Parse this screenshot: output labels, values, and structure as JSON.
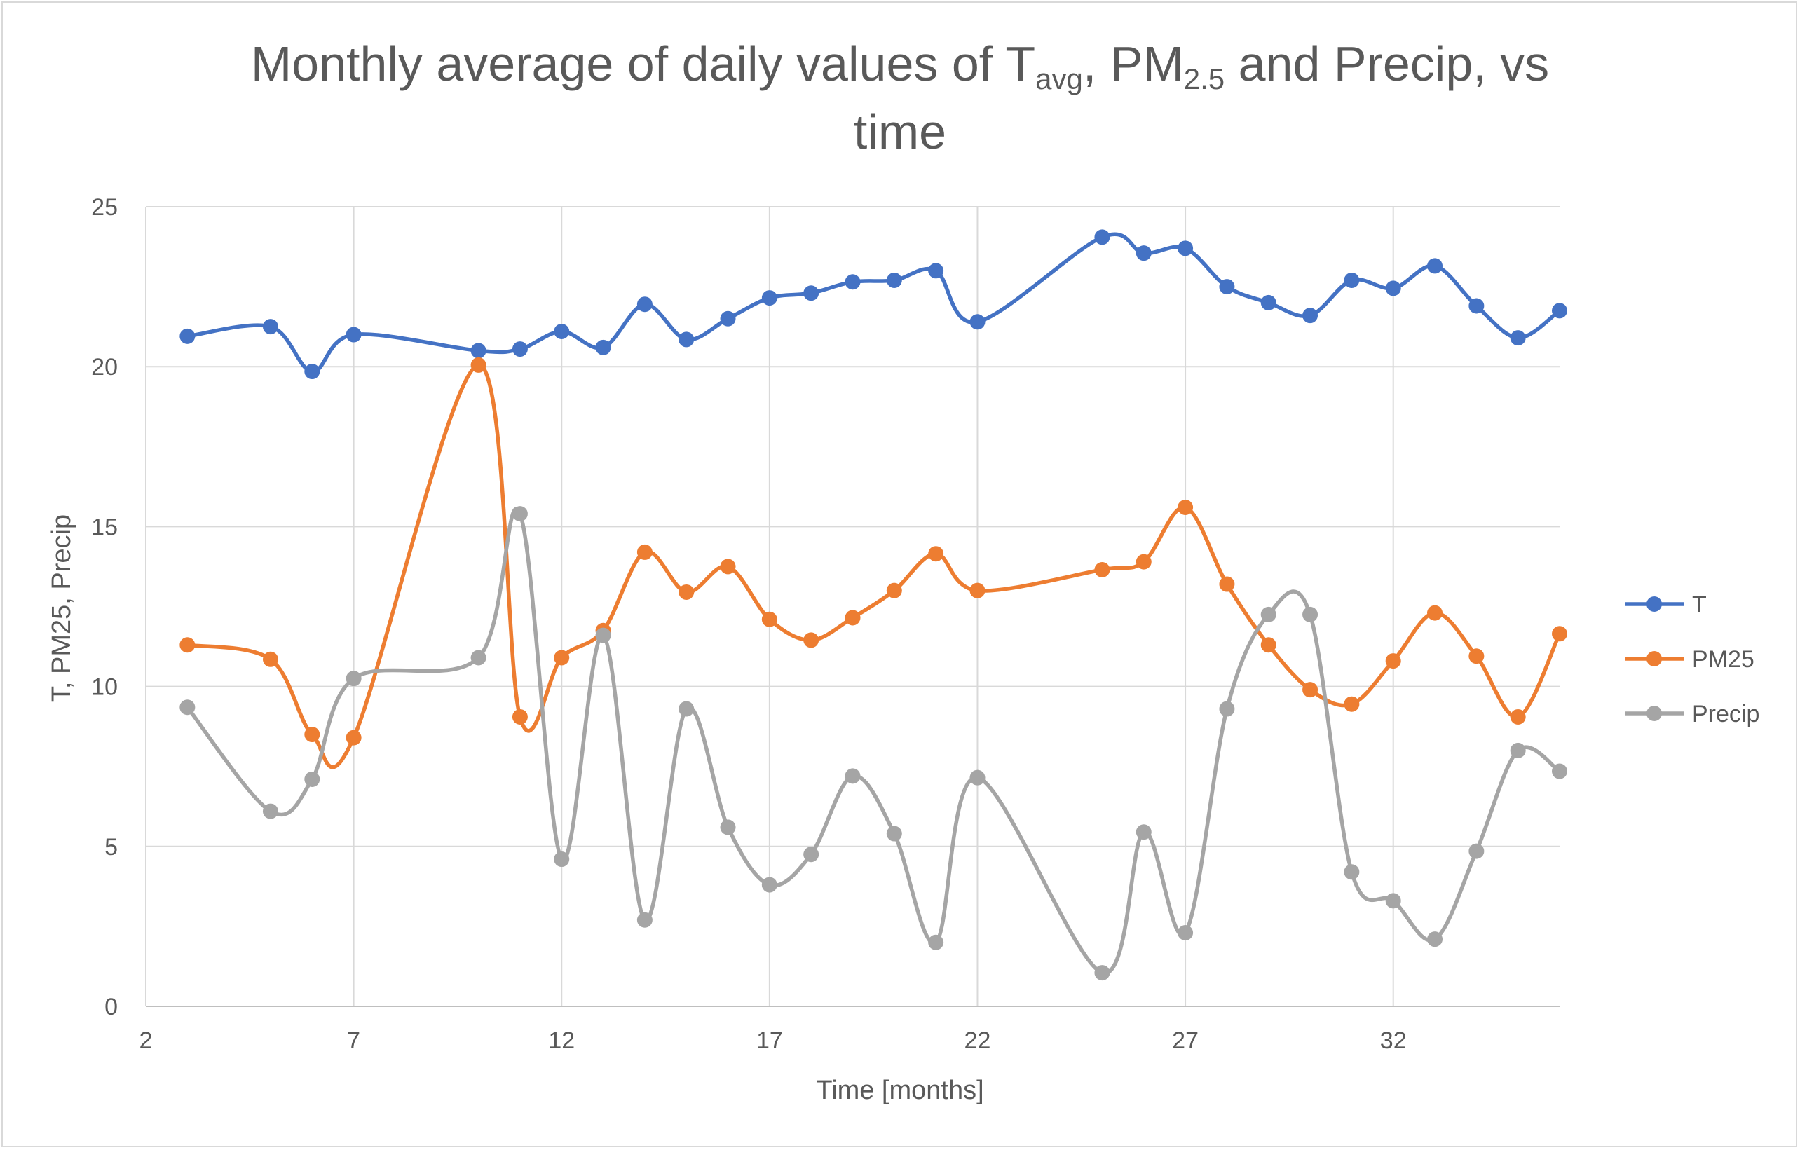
{
  "chart_data": {
    "type": "line",
    "title_parts": {
      "prefix": "Monthly average of daily values of ",
      "t_main": "T",
      "t_sub": "avg",
      "sep": ",  ",
      "pm_main": "PM",
      "pm_sub": "2.5",
      "suffix": " and Precip, vs",
      "line2": "time"
    },
    "xlabel": "Time [months]",
    "ylabel": "T, PM25, Precip",
    "xlim": [
      2,
      36
    ],
    "ylim": [
      0,
      25
    ],
    "xticks": [
      2,
      7,
      12,
      17,
      22,
      27,
      32
    ],
    "yticks": [
      0,
      5,
      10,
      15,
      20,
      25
    ],
    "grid": true,
    "legend_position": "right",
    "x": [
      3,
      5,
      6,
      7,
      10,
      11,
      12,
      13,
      14,
      15,
      16,
      17,
      18,
      19,
      20,
      21,
      22,
      25,
      26,
      27,
      28,
      29,
      30,
      31,
      32,
      33,
      34,
      35,
      36
    ],
    "series": [
      {
        "name": "T",
        "color": "#4472C4",
        "values": [
          20.95,
          21.25,
          19.85,
          21.0,
          20.5,
          20.55,
          21.1,
          20.6,
          21.95,
          20.85,
          21.5,
          22.15,
          22.3,
          22.65,
          22.7,
          23.0,
          21.4,
          24.05,
          23.55,
          23.7,
          22.5,
          22.0,
          21.6,
          22.7,
          22.45,
          23.15,
          21.9,
          20.9,
          21.75
        ]
      },
      {
        "name": "PM25",
        "color": "#ED7D31",
        "values": [
          11.3,
          10.85,
          8.5,
          8.4,
          20.05,
          9.05,
          10.9,
          11.75,
          14.2,
          12.95,
          13.75,
          12.1,
          11.45,
          12.15,
          13.0,
          14.15,
          13.0,
          13.65,
          13.9,
          15.6,
          13.2,
          11.3,
          9.9,
          9.45,
          10.8,
          12.3,
          10.95,
          9.05,
          11.65
        ]
      },
      {
        "name": "Precip",
        "color": "#A5A5A5",
        "values": [
          9.35,
          6.1,
          7.1,
          10.25,
          10.9,
          15.4,
          4.6,
          11.6,
          2.7,
          9.3,
          5.6,
          3.8,
          4.75,
          7.2,
          5.4,
          2.0,
          7.15,
          1.05,
          5.45,
          2.3,
          9.3,
          12.25,
          12.25,
          4.2,
          3.3,
          2.1,
          4.85,
          8.0,
          7.35
        ]
      }
    ]
  }
}
